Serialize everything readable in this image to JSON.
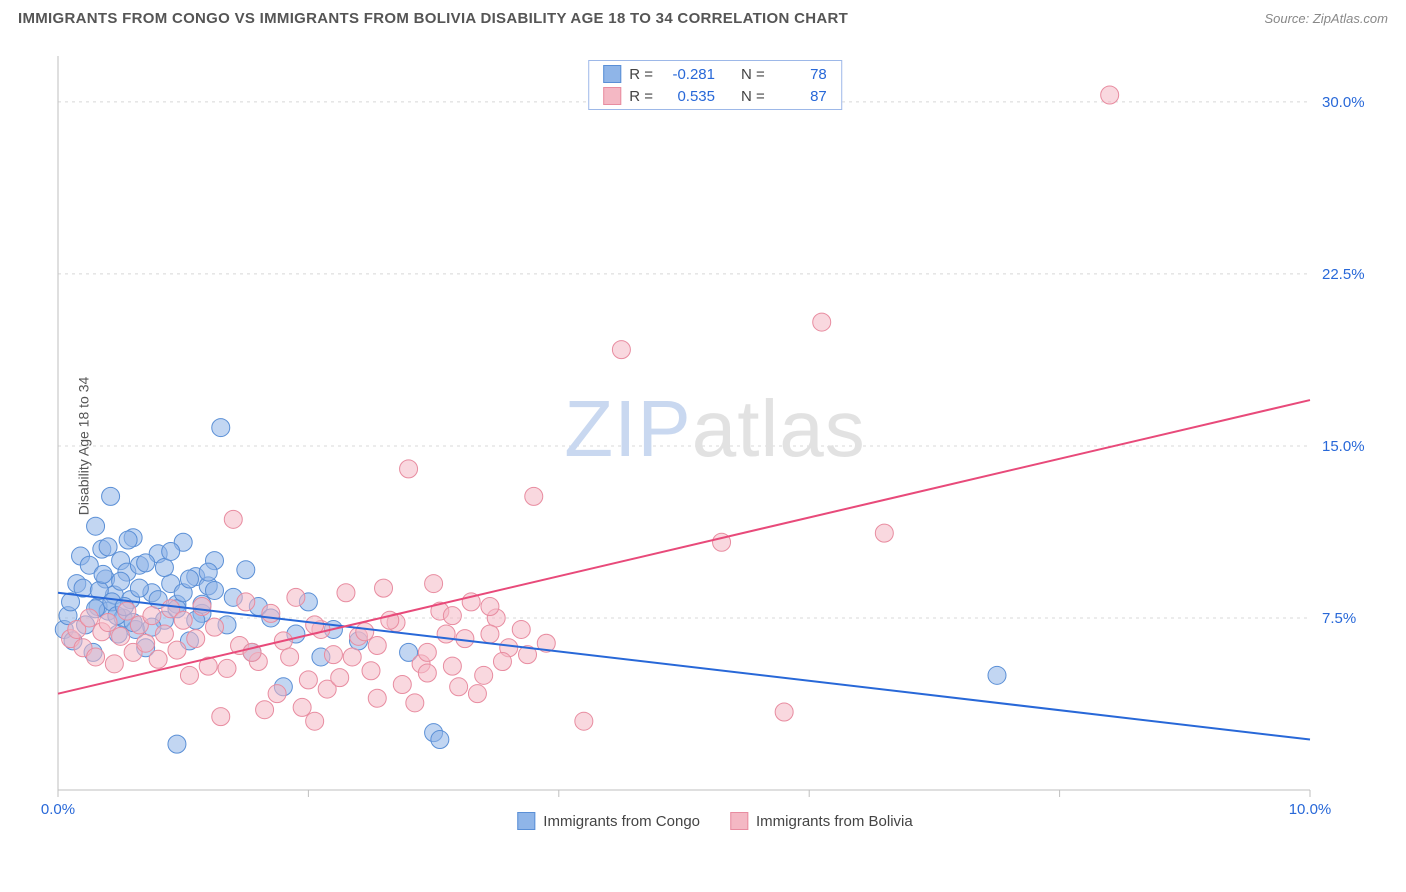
{
  "title": "IMMIGRANTS FROM CONGO VS IMMIGRANTS FROM BOLIVIA DISABILITY AGE 18 TO 34 CORRELATION CHART",
  "source_prefix": "Source: ",
  "source_link": "ZipAtlas.com",
  "y_axis_label": "Disability Age 18 to 34",
  "watermark": {
    "part1": "ZIP",
    "part2": "atlas"
  },
  "chart": {
    "type": "scatter",
    "background_color": "#ffffff",
    "grid_color": "#d8d8d8",
    "axis_color": "#bfbfbf",
    "xlim": [
      0,
      10
    ],
    "ylim": [
      0,
      32
    ],
    "x_ticks": [
      0,
      2,
      4,
      6,
      8,
      10
    ],
    "x_tick_labels": [
      "0.0%",
      "",
      "",
      "",
      "",
      "10.0%"
    ],
    "y_ticks": [
      7.5,
      15.0,
      22.5,
      30.0
    ],
    "y_tick_labels": [
      "7.5%",
      "15.0%",
      "22.5%",
      "30.0%"
    ],
    "marker_radius": 9,
    "marker_opacity": 0.55,
    "line_width": 2,
    "series": [
      {
        "name": "Immigrants from Congo",
        "color": "#8fb5e8",
        "stroke": "#5a8fd6",
        "line_color": "#2868d8",
        "R": "-0.281",
        "N": "78",
        "trend": {
          "x1": 0.0,
          "y1": 8.6,
          "x2": 10.0,
          "y2": 2.2
        },
        "points": [
          [
            0.05,
            7.0
          ],
          [
            0.08,
            7.6
          ],
          [
            0.1,
            8.2
          ],
          [
            0.12,
            6.5
          ],
          [
            0.15,
            9.0
          ],
          [
            0.18,
            10.2
          ],
          [
            0.2,
            8.8
          ],
          [
            0.22,
            7.2
          ],
          [
            0.25,
            9.8
          ],
          [
            0.28,
            6.0
          ],
          [
            0.3,
            11.5
          ],
          [
            0.32,
            8.0
          ],
          [
            0.35,
            10.5
          ],
          [
            0.38,
            9.2
          ],
          [
            0.4,
            7.8
          ],
          [
            0.42,
            12.8
          ],
          [
            0.45,
            8.5
          ],
          [
            0.48,
            6.8
          ],
          [
            0.5,
            10.0
          ],
          [
            0.52,
            7.5
          ],
          [
            0.55,
            9.5
          ],
          [
            0.58,
            8.3
          ],
          [
            0.6,
            11.0
          ],
          [
            0.62,
            7.0
          ],
          [
            0.65,
            9.8
          ],
          [
            0.7,
            6.2
          ],
          [
            0.75,
            8.6
          ],
          [
            0.8,
            10.3
          ],
          [
            0.85,
            7.4
          ],
          [
            0.9,
            9.0
          ],
          [
            0.95,
            8.1
          ],
          [
            1.0,
            10.8
          ],
          [
            1.05,
            6.5
          ],
          [
            1.1,
            9.3
          ],
          [
            1.15,
            7.7
          ],
          [
            1.2,
            8.9
          ],
          [
            1.25,
            10.0
          ],
          [
            1.3,
            15.8
          ],
          [
            1.35,
            7.2
          ],
          [
            1.4,
            8.4
          ],
          [
            1.5,
            9.6
          ],
          [
            1.55,
            6.0
          ],
          [
            1.6,
            8.0
          ],
          [
            1.7,
            7.5
          ],
          [
            1.8,
            4.5
          ],
          [
            1.9,
            6.8
          ],
          [
            2.0,
            8.2
          ],
          [
            2.1,
            5.8
          ],
          [
            2.2,
            7.0
          ],
          [
            2.4,
            6.5
          ],
          [
            2.8,
            6.0
          ],
          [
            3.0,
            2.5
          ],
          [
            3.05,
            2.2
          ],
          [
            0.95,
            2.0
          ],
          [
            7.5,
            5.0
          ],
          [
            0.3,
            7.9
          ],
          [
            0.33,
            8.7
          ],
          [
            0.36,
            9.4
          ],
          [
            0.4,
            10.6
          ],
          [
            0.43,
            8.2
          ],
          [
            0.47,
            7.6
          ],
          [
            0.5,
            9.1
          ],
          [
            0.53,
            8.0
          ],
          [
            0.56,
            10.9
          ],
          [
            0.6,
            7.3
          ],
          [
            0.65,
            8.8
          ],
          [
            0.7,
            9.9
          ],
          [
            0.75,
            7.1
          ],
          [
            0.8,
            8.3
          ],
          [
            0.85,
            9.7
          ],
          [
            0.9,
            10.4
          ],
          [
            0.95,
            7.9
          ],
          [
            1.0,
            8.6
          ],
          [
            1.05,
            9.2
          ],
          [
            1.1,
            7.4
          ],
          [
            1.15,
            8.1
          ],
          [
            1.2,
            9.5
          ],
          [
            1.25,
            8.7
          ]
        ]
      },
      {
        "name": "Immigrants from Bolivia",
        "color": "#f4b8c4",
        "stroke": "#e88ca0",
        "line_color": "#e84a7a",
        "R": "0.535",
        "N": "87",
        "trend": {
          "x1": 0.0,
          "y1": 4.2,
          "x2": 10.0,
          "y2": 17.0
        },
        "points": [
          [
            0.1,
            6.6
          ],
          [
            0.15,
            7.0
          ],
          [
            0.2,
            6.2
          ],
          [
            0.25,
            7.5
          ],
          [
            0.3,
            5.8
          ],
          [
            0.35,
            6.9
          ],
          [
            0.4,
            7.3
          ],
          [
            0.45,
            5.5
          ],
          [
            0.5,
            6.7
          ],
          [
            0.55,
            7.8
          ],
          [
            0.6,
            6.0
          ],
          [
            0.65,
            7.2
          ],
          [
            0.7,
            6.4
          ],
          [
            0.75,
            7.6
          ],
          [
            0.8,
            5.7
          ],
          [
            0.85,
            6.8
          ],
          [
            0.9,
            7.9
          ],
          [
            0.95,
            6.1
          ],
          [
            1.0,
            7.4
          ],
          [
            1.05,
            5.0
          ],
          [
            1.1,
            6.6
          ],
          [
            1.15,
            8.0
          ],
          [
            1.2,
            5.4
          ],
          [
            1.25,
            7.1
          ],
          [
            1.3,
            3.2
          ],
          [
            1.4,
            11.8
          ],
          [
            1.45,
            6.3
          ],
          [
            1.5,
            8.2
          ],
          [
            1.6,
            5.6
          ],
          [
            1.65,
            3.5
          ],
          [
            1.7,
            7.7
          ],
          [
            1.8,
            6.5
          ],
          [
            1.9,
            8.4
          ],
          [
            2.0,
            4.8
          ],
          [
            2.05,
            3.0
          ],
          [
            2.1,
            7.0
          ],
          [
            2.2,
            5.9
          ],
          [
            2.3,
            8.6
          ],
          [
            2.4,
            6.7
          ],
          [
            2.5,
            5.2
          ],
          [
            2.55,
            4.0
          ],
          [
            2.6,
            8.8
          ],
          [
            2.7,
            7.3
          ],
          [
            2.8,
            14.0
          ],
          [
            2.85,
            3.8
          ],
          [
            2.9,
            5.5
          ],
          [
            3.0,
            9.0
          ],
          [
            3.1,
            6.8
          ],
          [
            3.2,
            4.5
          ],
          [
            3.3,
            8.2
          ],
          [
            3.4,
            5.0
          ],
          [
            3.5,
            7.5
          ],
          [
            3.6,
            6.2
          ],
          [
            3.8,
            12.8
          ],
          [
            4.2,
            3.0
          ],
          [
            4.5,
            19.2
          ],
          [
            5.3,
            10.8
          ],
          [
            5.8,
            3.4
          ],
          [
            6.1,
            20.4
          ],
          [
            6.6,
            11.2
          ],
          [
            8.4,
            30.3
          ],
          [
            1.75,
            4.2
          ],
          [
            1.95,
            3.6
          ],
          [
            2.15,
            4.4
          ],
          [
            2.35,
            5.8
          ],
          [
            2.45,
            6.9
          ],
          [
            2.65,
            7.4
          ],
          [
            2.75,
            4.6
          ],
          [
            2.95,
            6.0
          ],
          [
            3.05,
            7.8
          ],
          [
            3.15,
            5.4
          ],
          [
            3.25,
            6.6
          ],
          [
            3.35,
            4.2
          ],
          [
            3.45,
            8.0
          ],
          [
            3.55,
            5.6
          ],
          [
            3.7,
            7.0
          ],
          [
            3.9,
            6.4
          ],
          [
            1.35,
            5.3
          ],
          [
            1.55,
            6.0
          ],
          [
            1.85,
            5.8
          ],
          [
            2.05,
            7.2
          ],
          [
            2.25,
            4.9
          ],
          [
            2.55,
            6.3
          ],
          [
            2.95,
            5.1
          ],
          [
            3.15,
            7.6
          ],
          [
            3.45,
            6.8
          ],
          [
            3.75,
            5.9
          ]
        ]
      }
    ]
  },
  "legend_top": {
    "r_label": "R =",
    "n_label": "N ="
  },
  "bottom_legend": [
    "Immigrants from Congo",
    "Immigrants from Bolivia"
  ]
}
